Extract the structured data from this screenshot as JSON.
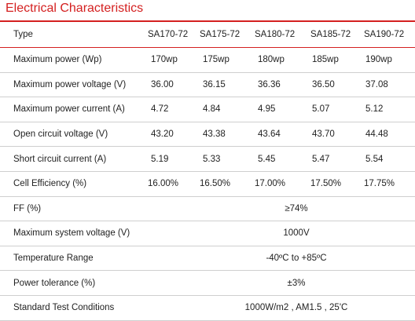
{
  "title": "Electrical Characteristics",
  "accent_color": "#d42020",
  "header": {
    "type_label": "Type",
    "models": [
      "SA170-72",
      "SA175-72",
      "SA180-72",
      "SA185-72",
      "SA190-72"
    ]
  },
  "rows": [
    {
      "label": "Maximum power (Wp)",
      "values": [
        "170wp",
        "175wp",
        "180wp",
        "185wp",
        "190wp"
      ]
    },
    {
      "label": "Maximum power voltage (V)",
      "values": [
        "36.00",
        "36.15",
        "36.36",
        "36.50",
        "37.08"
      ]
    },
    {
      "label": "Maximum power current (A)",
      "values": [
        "4.72",
        "4.84",
        "4.95",
        "5.07",
        "5.12"
      ]
    },
    {
      "label": "Open circuit voltage (V)",
      "values": [
        "43.20",
        "43.38",
        "43.64",
        "43.70",
        "44.48"
      ]
    },
    {
      "label": "Short circuit current (A)",
      "values": [
        "5.19",
        "5.33",
        "5.45",
        "5.47",
        "5.54"
      ]
    },
    {
      "label": "Cell Efficiency (%)",
      "values": [
        "16.00%",
        "16.50%",
        "17.00%",
        "17.50%",
        "17.75%"
      ]
    }
  ],
  "span_rows": [
    {
      "label": "FF (%)",
      "value": "≥74%"
    },
    {
      "label": "Maximum system voltage (V)",
      "value": "1000V"
    },
    {
      "label": "Temperature Range",
      "value": "-40ºC to +85ºC"
    },
    {
      "label": "Power tolerance (%)",
      "value": "±3%"
    },
    {
      "label": "Standard Test Conditions",
      "value": "1000W/m2  , AM1.5 , 25'C"
    }
  ]
}
